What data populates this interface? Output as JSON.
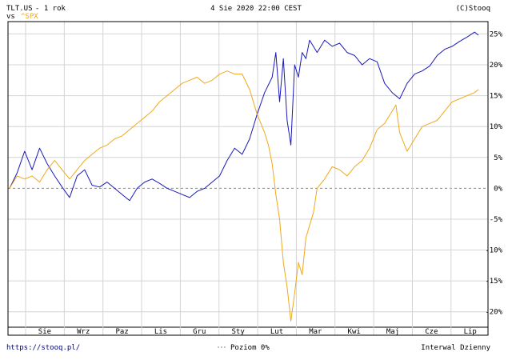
{
  "header": {
    "ticker": "TLT.US",
    "period": " - 1 rok",
    "compare_prefix": "vs ",
    "compare_ticker": "^SPX",
    "timestamp": "4 Sie 2020 22:00 CEST",
    "copyright": "(C)Stooq"
  },
  "footer": {
    "url": "https://stooq.pl/",
    "level_legend": "Poziom 0%",
    "interval": "Interwal Dzienny"
  },
  "colors": {
    "tlt": "#1a1ab8",
    "spx": "#f0a818",
    "grid": "#d4d4d4",
    "zero_line": "#888888"
  },
  "chart_data": {
    "type": "line",
    "x_labels": [
      "Sie",
      "Wrz",
      "Paz",
      "Lis",
      "Gru",
      "Sty",
      "Lut",
      "Mar",
      "Kwi",
      "Maj",
      "Cze",
      "Lip"
    ],
    "y_ticks": [
      25,
      20,
      15,
      10,
      5,
      0,
      -5,
      -10,
      -15,
      -20
    ],
    "y_tick_labels": [
      "25%",
      "20%",
      "15%",
      "10%",
      "5%",
      "0%",
      "-5%",
      "-10%",
      "-15%",
      "-20%"
    ],
    "ylim": [
      -22.5,
      27
    ],
    "x_range": [
      0,
      250
    ],
    "zero_line": true,
    "series": [
      {
        "name": "TLT.US",
        "color": "#1a1ab8",
        "x": [
          0,
          4,
          8,
          12,
          16,
          20,
          24,
          28,
          32,
          36,
          40,
          44,
          48,
          52,
          56,
          60,
          64,
          68,
          72,
          76,
          80,
          84,
          88,
          92,
          96,
          100,
          104,
          108,
          112,
          116,
          120,
          124,
          128,
          132,
          136,
          140,
          142,
          144,
          146,
          148,
          150,
          152,
          154,
          156,
          158,
          160,
          162,
          164,
          168,
          172,
          176,
          180,
          184,
          188,
          192,
          196,
          200,
          204,
          208,
          212,
          216,
          220,
          224,
          228,
          232,
          236,
          240,
          244,
          248,
          250
        ],
        "y": [
          0,
          2.5,
          6,
          3,
          6.5,
          4,
          2,
          0.2,
          -1.5,
          2,
          3,
          0.5,
          0.2,
          1,
          0,
          -1,
          -2,
          0,
          1,
          1.5,
          0.8,
          0,
          -0.5,
          -1,
          -1.5,
          -0.5,
          0,
          1,
          2,
          4.5,
          6.5,
          5.5,
          8,
          12,
          15.5,
          18,
          22,
          14,
          21,
          11,
          7,
          20,
          18,
          22,
          21,
          24,
          23,
          22,
          24,
          23,
          23.5,
          22,
          21.5,
          20,
          21,
          20.5,
          17,
          15.5,
          14.5,
          17,
          18.5,
          19,
          19.8,
          21.5,
          22.5,
          23,
          23.8,
          24.5,
          25.3,
          24.8
        ]
      },
      {
        "name": "^SPX",
        "color": "#f0a818",
        "x": [
          0,
          4,
          8,
          12,
          16,
          20,
          24,
          28,
          32,
          36,
          40,
          44,
          48,
          52,
          56,
          60,
          64,
          68,
          72,
          76,
          80,
          84,
          88,
          92,
          96,
          100,
          104,
          108,
          112,
          116,
          120,
          124,
          128,
          132,
          136,
          138,
          140,
          142,
          144,
          146,
          148,
          150,
          152,
          154,
          156,
          158,
          160,
          162,
          164,
          168,
          172,
          176,
          180,
          184,
          188,
          192,
          196,
          200,
          204,
          206,
          208,
          212,
          216,
          220,
          224,
          228,
          232,
          236,
          240,
          244,
          248,
          250
        ],
        "y": [
          0,
          2,
          1.5,
          2,
          1,
          3,
          4.5,
          3,
          1.5,
          3,
          4.5,
          5.5,
          6.5,
          7,
          8,
          8.5,
          9.5,
          10.5,
          11.5,
          12.5,
          14,
          15,
          16,
          17,
          17.5,
          18,
          17,
          17.5,
          18.5,
          19,
          18.5,
          18.5,
          16,
          12,
          9,
          7,
          4,
          -1,
          -5,
          -12,
          -16,
          -21.5,
          -17,
          -12,
          -14,
          -8,
          -6,
          -4,
          0,
          1.5,
          3.5,
          3,
          2,
          3.5,
          4.5,
          6.5,
          9.5,
          10.5,
          12.5,
          13.5,
          9,
          6,
          8,
          10,
          10.5,
          11,
          12.5,
          14,
          14.5,
          15,
          15.5,
          16
        ]
      }
    ]
  }
}
